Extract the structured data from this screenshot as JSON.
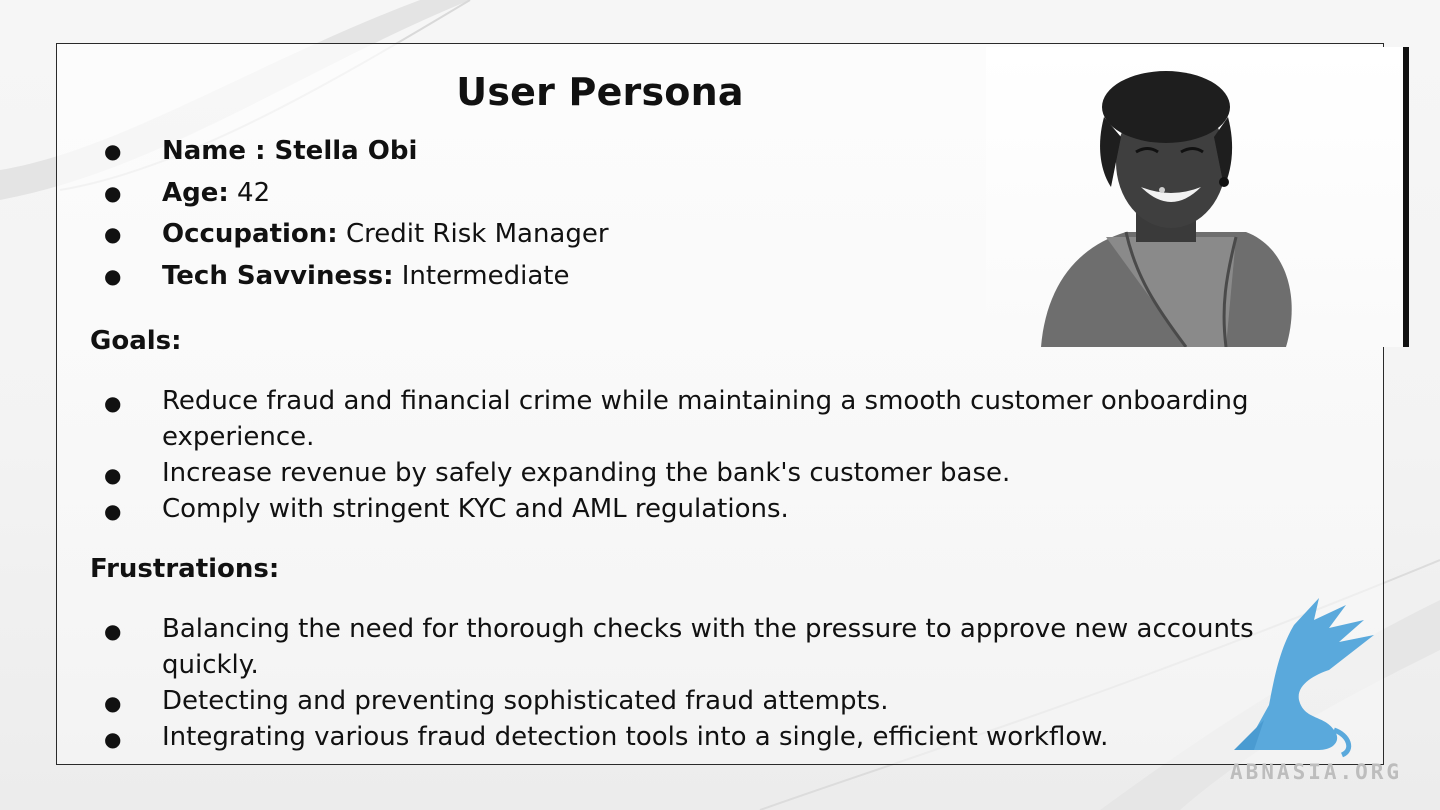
{
  "slide": {
    "title": "User Persona",
    "profile": [
      {
        "label": "Name : Stella Obi",
        "value": ""
      },
      {
        "label": "Age:",
        "value": " 42"
      },
      {
        "label": "Occupation:",
        "value": " Credit Risk Manager"
      },
      {
        "label": "Tech Savviness:",
        "value": " Intermediate"
      }
    ],
    "goals": {
      "heading": "Goals:",
      "items": [
        "Reduce fraud and financial crime while maintaining a smooth customer onboarding experience.",
        "Increase revenue by safely expanding the bank's customer base.",
        "Comply with stringent KYC and AML regulations."
      ]
    },
    "frustrations": {
      "heading": "Frustrations:",
      "items": [
        "Balancing the need for thorough checks with the pressure to approve new accounts quickly.",
        "Detecting and preventing sophisticated fraud attempts.",
        "Integrating various fraud detection tools into a single, efficient workflow."
      ]
    },
    "bullet_symbol": "●"
  },
  "watermark": {
    "text": "ABNASIA.ORG",
    "color": "#5aa9dc"
  }
}
